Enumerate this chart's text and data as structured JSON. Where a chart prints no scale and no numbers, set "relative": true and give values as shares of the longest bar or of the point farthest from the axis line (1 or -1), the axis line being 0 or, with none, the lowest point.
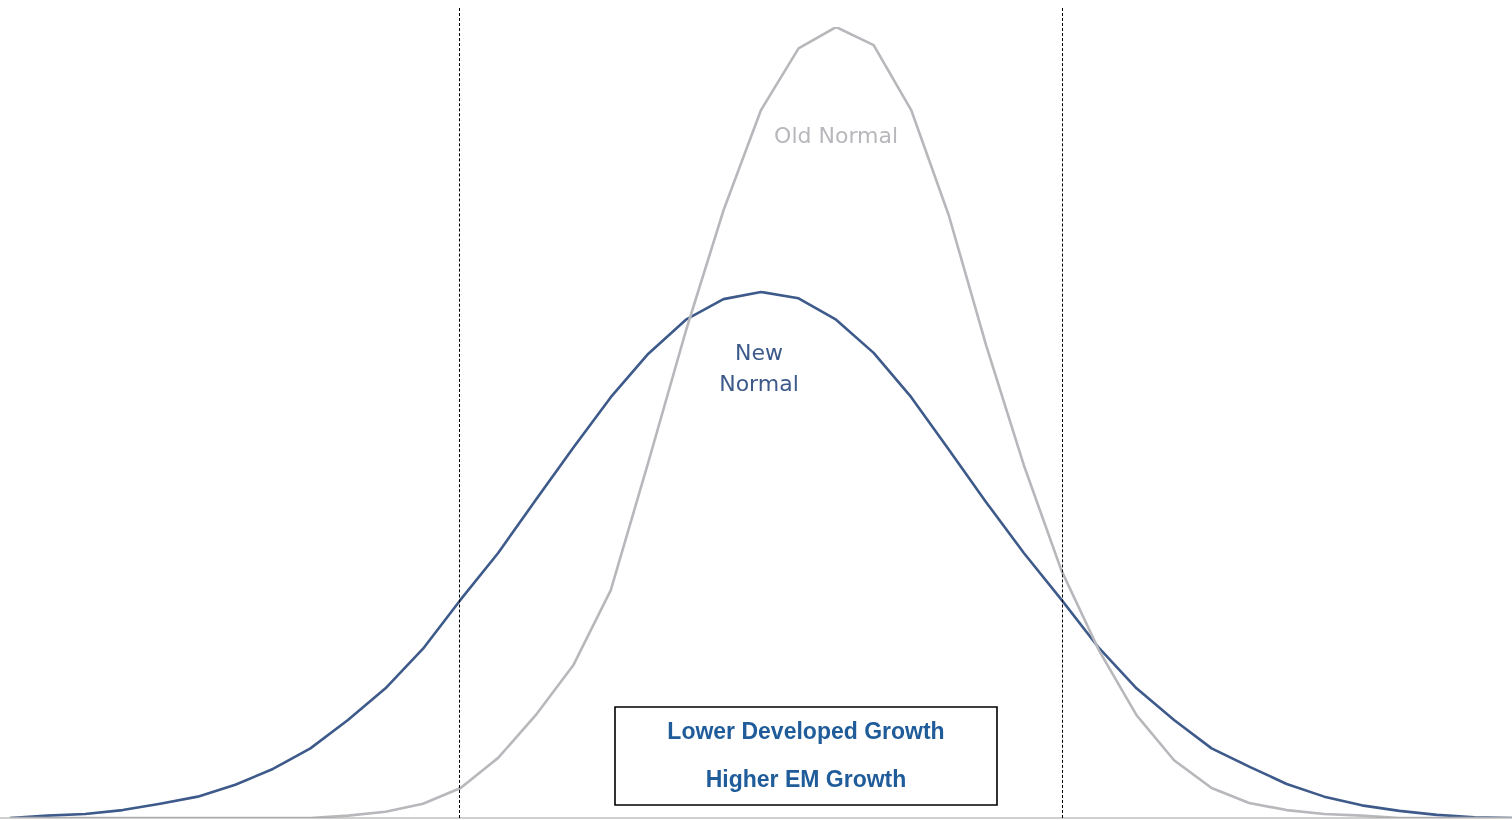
{
  "chart_data": {
    "type": "line",
    "relative": true,
    "legend": false,
    "marker": "none",
    "line_style": "solid",
    "categories": [
      null,
      null,
      null,
      null,
      null,
      null,
      null,
      null,
      null,
      null,
      null,
      null,
      null,
      null,
      null,
      null,
      null,
      null,
      null,
      null,
      null,
      null,
      null,
      null,
      null,
      null,
      null,
      null,
      null,
      null,
      null,
      null,
      null,
      null,
      null,
      null,
      null,
      null,
      null,
      null,
      null
    ],
    "series": [
      {
        "name": "Old Normal",
        "color": "#b8b8bc",
        "values": [
          0,
          0,
          0,
          0,
          0,
          0,
          0,
          0,
          0,
          0.003,
          0.008,
          0.018,
          0.038,
          0.076,
          0.13,
          0.193,
          0.288,
          0.45,
          0.616,
          0.768,
          0.895,
          0.973,
          1,
          0.977,
          0.895,
          0.762,
          0.597,
          0.446,
          0.313,
          0.212,
          0.13,
          0.073,
          0.038,
          0.019,
          0.01,
          0.005,
          0.003,
          0,
          0,
          0,
          0
        ]
      },
      {
        "name": "New Normal",
        "color": "#3d5a8a",
        "values": [
          0,
          0.003,
          0.005,
          0.01,
          0.018,
          0.027,
          0.042,
          0.062,
          0.088,
          0.124,
          0.164,
          0.214,
          0.276,
          0.335,
          0.402,
          0.468,
          0.532,
          0.587,
          0.63,
          0.656,
          0.665,
          0.657,
          0.63,
          0.588,
          0.532,
          0.466,
          0.399,
          0.335,
          0.276,
          0.215,
          0.164,
          0.124,
          0.088,
          0.065,
          0.043,
          0.027,
          0.016,
          0.009,
          0.004,
          0.001,
          0
        ]
      }
    ],
    "annotations": [
      "Lower Developed Growth",
      "Higher EM Growth"
    ]
  }
}
